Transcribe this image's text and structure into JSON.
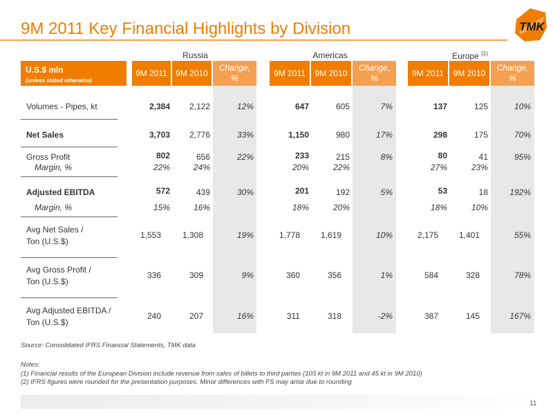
{
  "title": "9M 2011 Key Financial Highlights by Division",
  "logo_text": "TMK",
  "regions": [
    {
      "name": "Russia",
      "note": ""
    },
    {
      "name": "Americas",
      "note": ""
    },
    {
      "name": "Europe",
      "note": "(1)"
    }
  ],
  "header": {
    "unit": "U.S.$ mln",
    "unit_sub": "(unless stated otherwise)",
    "col_current": "9M 2011",
    "col_prior": "9M 2010",
    "col_change_1": "Change,",
    "col_change_2": "%"
  },
  "rows": [
    {
      "label": "Volumes - Pipes, kt",
      "style": "normal",
      "values": [
        "2,384",
        "2,122",
        "12%",
        "647",
        "605",
        "7%",
        "137",
        "125",
        "10%"
      ]
    },
    {
      "label": "Net Sales",
      "style": "bold",
      "values": [
        "3,703",
        "2,776",
        "33%",
        "1,150",
        "980",
        "17%",
        "298",
        "175",
        "70%"
      ]
    },
    {
      "label": "Gross Profit",
      "style": "normal",
      "values": [
        "802",
        "656",
        "22%",
        "233",
        "215",
        "8%",
        "80",
        "41",
        "95%"
      ]
    },
    {
      "label": "Margin, %",
      "style": "margin",
      "values": [
        "22%",
        "24%",
        "",
        "20%",
        "22%",
        "",
        "27%",
        "23%",
        ""
      ]
    },
    {
      "label": "Adjusted EBITDA",
      "style": "bold",
      "values": [
        "572",
        "439",
        "30%",
        "201",
        "192",
        "5%",
        "53",
        "18",
        "192%"
      ]
    },
    {
      "label": "Margin, %",
      "style": "margin",
      "values": [
        "15%",
        "16%",
        "",
        "18%",
        "20%",
        "",
        "18%",
        "10%",
        ""
      ]
    },
    {
      "label_1": "Avg Net Sales /",
      "label_2": "Ton (U.S.$)",
      "style": "two",
      "values": [
        "1,553",
        "1,308",
        "19%",
        "1,778",
        "1,619",
        "10%",
        "2,175",
        "1,401",
        "55%"
      ]
    },
    {
      "label_1": "Avg Gross Profit /",
      "label_2": "Ton (U.S.$)",
      "style": "two",
      "values": [
        "336",
        "309",
        "9%",
        "360",
        "356",
        "1%",
        "584",
        "328",
        "78%"
      ]
    },
    {
      "label_1": "Avg Adjusted EBITDA /",
      "label_2": "Ton (U.S.$)",
      "style": "two",
      "values": [
        "240",
        "207",
        "16%",
        "311",
        "318",
        "-2%",
        "387",
        "145",
        "167%"
      ]
    }
  ],
  "source": "Source: Consolidated IFRS Financial Statements, TMK data",
  "notes": {
    "heading": "Notes:",
    "items": [
      "(1)   Financial results of the European Division include revenue from sales of billets to third parties (103 kt in 9M 2011 and  45 kt in 9M 2010)",
      "(2)   IFRS figures were rounded for the presentation purposes. Minor differences with FS may arise due to rounding"
    ]
  },
  "page_number": "11",
  "colors": {
    "accent": "#f07d00",
    "accent_light": "#f5a050",
    "shade": "#e8e8e8"
  }
}
